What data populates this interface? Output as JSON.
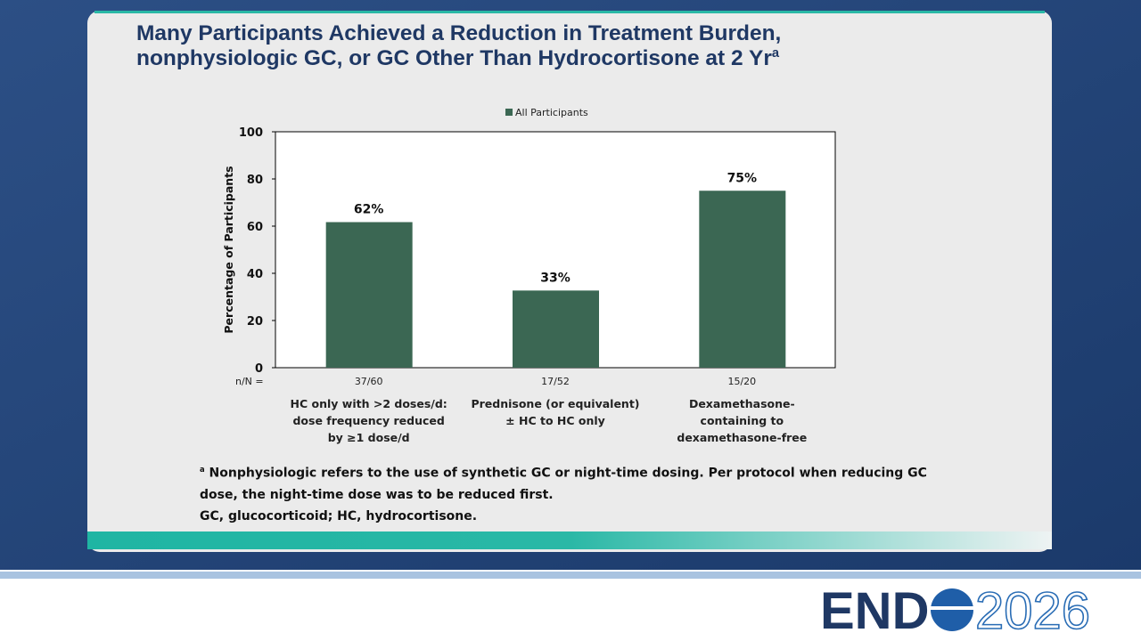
{
  "slide": {
    "title_lines": [
      "Many Participants Achieved a Reduction in Treatment Burden,",
      "nonphysiologic GC, or GC Other Than Hydrocortisone at 2 Yr"
    ],
    "title_note_mark": "a",
    "footnote_mark": "a",
    "footnote_lines": [
      "Nonphysiologic refers to the use of synthetic GC or night-time dosing. Per protocol when reducing GC",
      "dose, the night-time dose was to be reduced first.",
      "GC, glucocorticoid; HC, hydrocortisone."
    ],
    "logo_left": "END",
    "logo_right": "2026"
  },
  "chart_data": {
    "type": "bar",
    "categories": [
      "HC only with >2 doses/d: dose frequency reduced by ≥1 dose/d",
      "Prednisone (or equivalent) ± HC to HC only",
      "Dexamethasone-containing to dexamethasone-free"
    ],
    "series": [
      {
        "name": "All Participants",
        "color": "#3b6753",
        "values": [
          61.7,
          32.7,
          75
        ],
        "value_labels": [
          "62%",
          "33%",
          "75%"
        ]
      }
    ],
    "n_label": "n/N =",
    "n_values": [
      "37/60",
      "17/52",
      "15/20"
    ],
    "ylabel": "Percentage of Participants",
    "ylim": [
      0,
      100
    ],
    "yticks": [
      0,
      20,
      40,
      60,
      80,
      100
    ],
    "legend": "top"
  }
}
